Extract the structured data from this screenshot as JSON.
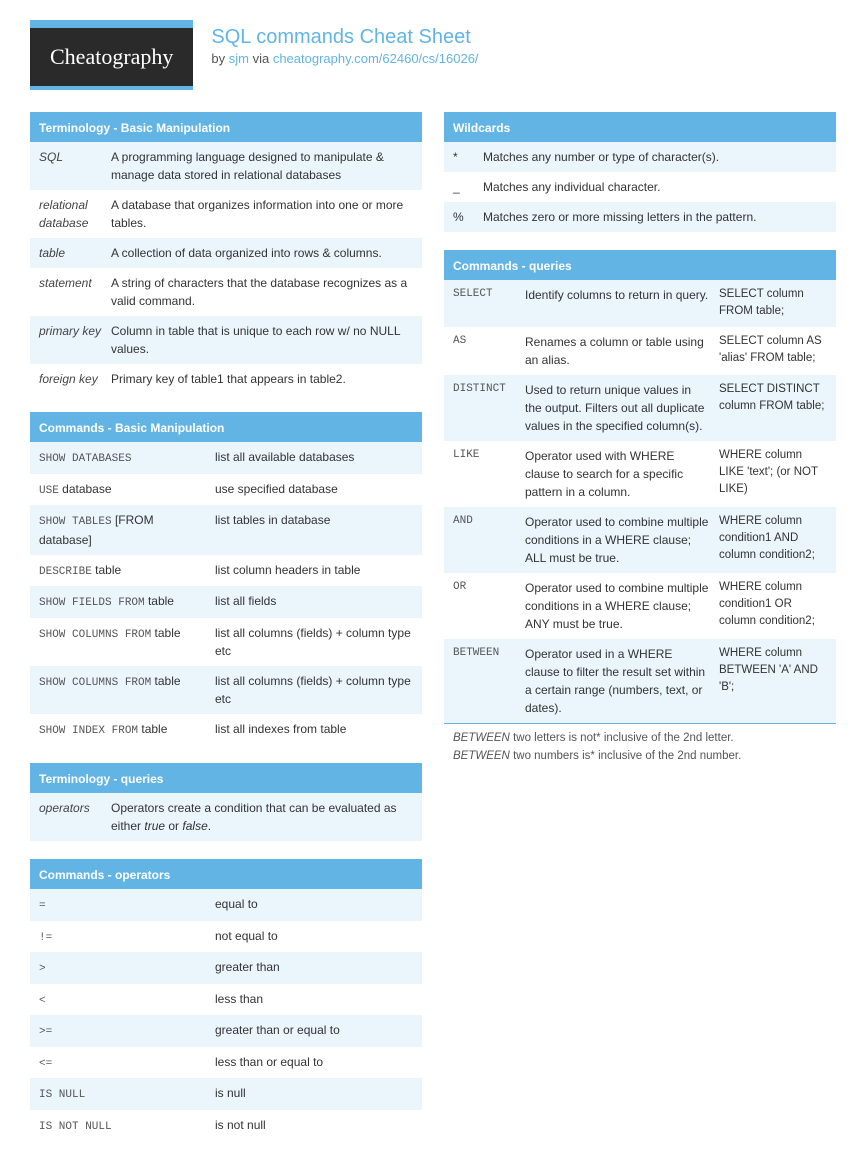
{
  "logo": "Cheatography",
  "title": "SQL commands Cheat Sheet",
  "by_prefix": "by ",
  "author": "sjm",
  "via_text": " via ",
  "via_link": "cheatography.com/62460/cs/16026/",
  "colors": {
    "accent": "#62b4e4",
    "row_alt": "#eaf5fc",
    "logo_bg": "#2a2a2a",
    "text": "#333333"
  },
  "left": [
    {
      "title": "Terminology - Basic Manipulation",
      "layout": "term",
      "rows": [
        {
          "term": "SQL",
          "desc": "A programming language designed to manipulate & manage data stored in relational databases"
        },
        {
          "term": "relational database",
          "desc": "A database that organizes information into one or more tables."
        },
        {
          "term": "table",
          "desc": "A collection of data organized into rows & columns."
        },
        {
          "term": "statement",
          "desc": "A string of characters that the database recognizes as a valid command."
        },
        {
          "term": "primary key",
          "desc": "Column in table that is unique to each row w/ no NULL values."
        },
        {
          "term": "foreign key",
          "desc": "Primary key of table1 that appears in table2."
        }
      ]
    },
    {
      "title": "Commands - Basic Manipulation",
      "layout": "cmd2",
      "rows": [
        {
          "cmd_code": "SHOW DATABASES",
          "cmd_plain": "",
          "desc": "list all available databases"
        },
        {
          "cmd_code": "USE",
          "cmd_plain": " database",
          "desc": "use specified database"
        },
        {
          "cmd_code": "SHOW TABLES",
          "cmd_plain": " [FROM database]",
          "desc": "list tables in database"
        },
        {
          "cmd_code": "DESCRIBE",
          "cmd_plain": " table",
          "desc": "list column headers in table"
        },
        {
          "cmd_code": "SHOW FIELDS FROM",
          "cmd_plain": " table",
          "desc": "list all fields"
        },
        {
          "cmd_code": "SHOW COLUMNS FROM",
          "cmd_plain": " table",
          "desc": "list all columns (fields) + column type etc"
        },
        {
          "cmd_code": "SHOW COLUMNS FROM",
          "cmd_plain": " table",
          "desc": "list all columns (fields) + column type etc"
        },
        {
          "cmd_code": "SHOW INDEX FROM",
          "cmd_plain": " table",
          "desc": "list all indexes from table"
        }
      ]
    },
    {
      "title": "Terminology - queries",
      "layout": "term",
      "rows": [
        {
          "term": "opera­tors",
          "desc_html": "Operators create a condition that can be evaluated as either <i>true</i> or <i>false</i>."
        }
      ]
    },
    {
      "title": "Commands - operators",
      "layout": "cmd2",
      "rows": [
        {
          "cmd_code": "=",
          "cmd_plain": "",
          "desc": "equal to"
        },
        {
          "cmd_code": "!=",
          "cmd_plain": "",
          "desc": "not equal to"
        },
        {
          "cmd_code": ">",
          "cmd_plain": "",
          "desc": "greater than"
        },
        {
          "cmd_code": "<",
          "cmd_plain": "",
          "desc": "less than"
        },
        {
          "cmd_code": ">=",
          "cmd_plain": "",
          "desc": "greater than or equal to"
        },
        {
          "cmd_code": "<=",
          "cmd_plain": "",
          "desc": "less than or equal to"
        },
        {
          "cmd_code": "IS NULL",
          "cmd_plain": "",
          "desc": "is null"
        },
        {
          "cmd_code": "IS NOT NULL",
          "cmd_plain": "",
          "desc": "is not null"
        }
      ]
    }
  ],
  "right": [
    {
      "title": "Wildcards",
      "layout": "wild",
      "rows": [
        {
          "sym": "*",
          "desc": "Matches any number or type of charac­ter(s)."
        },
        {
          "sym": "_",
          "desc": "Matches any individual character."
        },
        {
          "sym": "%",
          "desc": "Matches zero or more missing letters in the pattern."
        }
      ]
    },
    {
      "title": "Commands - queries",
      "layout": "cmd3",
      "rows": [
        {
          "cmd": "SELECT",
          "desc": "Identify columns to return in query.",
          "ex": "SELECT column FROM table;"
        },
        {
          "cmd": "AS",
          "desc": "Renames a column or table using an alias.",
          "ex": "SELECT column AS 'alias' FROM table;"
        },
        {
          "cmd": "DISTINCT",
          "desc": "Used to return unique values in the output. Filters out all duplicate values in the specified column(s).",
          "ex": "SELECT DISTINCT column FROM table;"
        },
        {
          "cmd": "LIKE",
          "desc": "Operator used with WHERE clause to search for a specific pattern in a column.",
          "ex": "WHERE column LIKE 'text'; (or NOT LIKE)"
        },
        {
          "cmd": "AND",
          "desc": "Operator used to combine multiple conditions in a WHERE clause; ALL must be true.",
          "ex": "WHERE column condition1 AND column condit­ion2;"
        },
        {
          "cmd": "OR",
          "desc": "Operator used to combine multiple conditions in a WHERE clause; ANY must be true.",
          "ex": "WHERE column condition1 OR column condit­ion2;"
        },
        {
          "cmd": "BETWEEN",
          "desc": "Operator used in a WHERE clause to filter the result set within a certain range (numbers, text, or dates).",
          "ex": "WHERE column BETWEEN 'A' AND 'B';"
        }
      ],
      "notes": [
        {
          "em": "BETWEEN",
          "rest": " two letters is not* inclusive of the 2nd letter."
        },
        {
          "em": "BETWEEN",
          "rest": " two numbers is* inclusive of the 2nd number."
        }
      ]
    }
  ]
}
